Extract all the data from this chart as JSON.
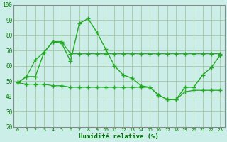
{
  "title": "",
  "xlabel": "Humidité relative (%)",
  "ylabel": "",
  "background_color": "#cceee8",
  "grid_color": "#aaccaa",
  "line_color": "#22aa22",
  "x": [
    0,
    1,
    2,
    3,
    4,
    5,
    6,
    7,
    8,
    9,
    10,
    11,
    12,
    13,
    14,
    15,
    16,
    17,
    18,
    19,
    20,
    21,
    22,
    23
  ],
  "y_main": [
    49,
    53,
    53,
    69,
    76,
    75,
    63,
    88,
    91,
    82,
    71,
    60,
    54,
    52,
    47,
    46,
    41,
    38,
    38,
    46,
    46,
    54,
    59,
    67
  ],
  "y_min": [
    49,
    48,
    48,
    48,
    47,
    47,
    46,
    46,
    46,
    46,
    46,
    46,
    46,
    46,
    46,
    46,
    41,
    38,
    38,
    43,
    44,
    44,
    44,
    44
  ],
  "y_max": [
    49,
    53,
    64,
    69,
    76,
    76,
    68,
    68,
    68,
    68,
    68,
    68,
    68,
    68,
    68,
    68,
    68,
    68,
    68,
    68,
    68,
    68,
    68,
    68
  ],
  "ylim": [
    20,
    100
  ],
  "xlim": [
    -0.5,
    23.5
  ],
  "yticks": [
    20,
    30,
    40,
    50,
    60,
    70,
    80,
    90,
    100
  ],
  "xticks": [
    0,
    1,
    2,
    3,
    4,
    5,
    6,
    7,
    8,
    9,
    10,
    11,
    12,
    13,
    14,
    15,
    16,
    17,
    18,
    19,
    20,
    21,
    22,
    23
  ]
}
